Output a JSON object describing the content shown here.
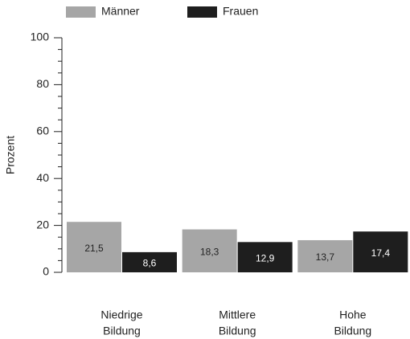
{
  "chart_data": {
    "type": "bar",
    "y_label": "Prozent",
    "categories": [
      [
        "Niedrige",
        "Bildung"
      ],
      [
        "Mittlere",
        "Bildung"
      ],
      [
        "Hohe",
        "Bildung"
      ]
    ],
    "series": [
      {
        "name": "Männer",
        "color": "#a6a6a6",
        "label_color": "#222222",
        "values": [
          21.5,
          18.3,
          13.7
        ],
        "value_labels": [
          "21,5",
          "18,3",
          "13,7"
        ]
      },
      {
        "name": "Frauen",
        "color": "#1e1e1e",
        "label_color": "#ffffff",
        "values": [
          8.6,
          12.9,
          17.4
        ],
        "value_labels": [
          "8,6",
          "12,9",
          "17,4"
        ]
      }
    ],
    "ylim": [
      0,
      100
    ],
    "yticks": [
      0,
      20,
      40,
      60,
      80,
      100
    ],
    "yminor_ticks": [
      5,
      10,
      15,
      25,
      30,
      35,
      45,
      50,
      55,
      65,
      70,
      75,
      85,
      90,
      95
    ],
    "legend": "top"
  }
}
